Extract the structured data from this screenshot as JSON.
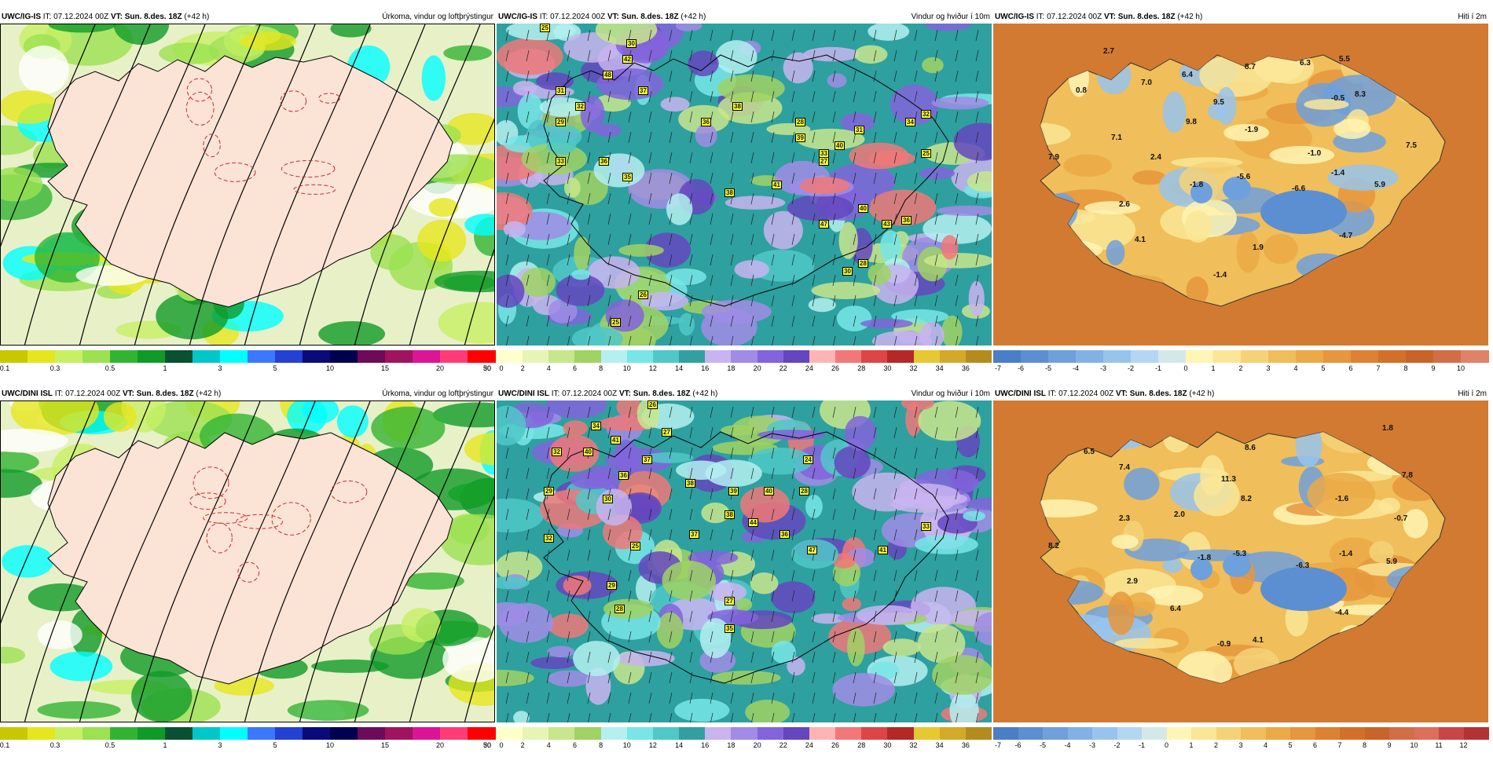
{
  "panels": [
    {
      "model": "UWC/IG-IS",
      "it": "IT: 07.12.2024 00Z",
      "vt_label": "VT:",
      "vt": "Sun. 8.des. 18Z",
      "lead": "(+42 h)",
      "title": "Úrkoma, vindur og loftþrýstingur"
    },
    {
      "model": "UWC/IG-IS",
      "it": "IT: 07.12.2024 00Z",
      "vt_label": "VT:",
      "vt": "Sun. 8.des. 18Z",
      "lead": "(+42 h)",
      "title": "Vindur og hviður í 10m"
    },
    {
      "model": "UWC/IG-IS",
      "it": "IT: 07.12.2024 00Z",
      "vt_label": "VT:",
      "vt": "Sun. 8.des. 18Z",
      "lead": "(+42 h)",
      "title": "Hiti í 2m"
    },
    {
      "model": "UWC/DINI ISL",
      "it": "IT: 07.12.2024 00Z",
      "vt_label": "VT:",
      "vt": "Sun. 8.des. 18Z",
      "lead": "(+42 h)",
      "title": "Úrkoma, vindur og loftþrýstingur"
    },
    {
      "model": "UWC/DINI ISL",
      "it": "IT: 07.12.2024 00Z",
      "vt_label": "VT:",
      "vt": "Sun. 8.des. 18Z",
      "lead": "(+42 h)",
      "title": "Vindur og hviður í 10m"
    },
    {
      "model": "UWC/DINI ISL",
      "it": "IT: 07.12.2024 00Z",
      "vt_label": "VT:",
      "vt": "Sun. 8.des. 18Z",
      "lead": "(+42 h)",
      "title": "Hiti í 2m"
    }
  ],
  "colorbars": {
    "precip": {
      "colors": [
        "#c8c800",
        "#e6e61e",
        "#c8f064",
        "#9be150",
        "#32b432",
        "#0f9b28",
        "#0a5032",
        "#00c8c8",
        "#00ffff",
        "#3c78ff",
        "#2341d2",
        "#0a0a78",
        "#000050",
        "#6e0a5a",
        "#a0145f",
        "#dc1496",
        "#ff3c78",
        "#ff0000"
      ],
      "labels": [
        "0.1",
        "0.3",
        "0.5",
        "1",
        "3",
        "5",
        "10",
        "15",
        "20",
        "30",
        "50"
      ]
    },
    "wind": {
      "colors": [
        "#ffffcc",
        "#e6f5b4",
        "#c8e68c",
        "#a0d264",
        "#b4f0f0",
        "#78e6e6",
        "#50c8c8",
        "#32a0a0",
        "#c8b4f0",
        "#a08ce6",
        "#8264dc",
        "#6446be",
        "#ffb4b4",
        "#f07878",
        "#dc4646",
        "#b42828",
        "#e6c832",
        "#d2aa28",
        "#b48c1e"
      ],
      "labels": [
        "0",
        "2",
        "4",
        "6",
        "8",
        "10",
        "12",
        "14",
        "16",
        "18",
        "20",
        "22",
        "24",
        "26",
        "28",
        "30",
        "32",
        "34",
        "36"
      ]
    },
    "temp_top": {
      "colors": [
        "#4a7fc8",
        "#5b8fd2",
        "#6ea0dc",
        "#82b2e4",
        "#98c4ec",
        "#b4d6f2",
        "#d4e8e8",
        "#fff5b4",
        "#fae696",
        "#f5d278",
        "#f0be5a",
        "#ebaa46",
        "#e6963c",
        "#dc8232",
        "#d2702a",
        "#c86428",
        "#d26e46",
        "#e08268"
      ],
      "labels": [
        "-7",
        "-6",
        "-5",
        "-4",
        "-3",
        "-2",
        "-1",
        "0",
        "1",
        "2",
        "3",
        "4",
        "5",
        "6",
        "7",
        "8",
        "9",
        "10"
      ]
    },
    "temp_bottom": {
      "colors": [
        "#4a7fc8",
        "#5b8fd2",
        "#6ea0dc",
        "#82b2e4",
        "#98c4ec",
        "#b4d6f2",
        "#d4e8e8",
        "#fff5b4",
        "#fae696",
        "#f5d278",
        "#f0be5a",
        "#ebaa46",
        "#e6963c",
        "#dc8232",
        "#d2702a",
        "#c86428",
        "#d26e46",
        "#dc6e5a",
        "#c84646",
        "#b43232"
      ],
      "labels": [
        "-7",
        "-6",
        "-5",
        "-4",
        "-3",
        "-2",
        "-1",
        "0",
        "1",
        "2",
        "3",
        "4",
        "5",
        "6",
        "7",
        "8",
        "9",
        "10",
        "11",
        "12"
      ]
    }
  },
  "wind_values_top": [
    "25",
    "30",
    "31",
    "32",
    "29",
    "33",
    "36",
    "35",
    "37",
    "42",
    "48",
    "38",
    "39",
    "40",
    "41",
    "27",
    "28",
    "36",
    "38",
    "33",
    "34",
    "32",
    "25",
    "40",
    "47",
    "43",
    "36",
    "30",
    "28",
    "26",
    "25",
    "31"
  ],
  "wind_values_bottom": [
    "26",
    "27",
    "34",
    "32",
    "40",
    "41",
    "37",
    "36",
    "29",
    "30",
    "38",
    "39",
    "40",
    "44",
    "28",
    "38",
    "47",
    "41",
    "33",
    "25",
    "37",
    "27",
    "29",
    "28",
    "35",
    "24",
    "36",
    "32"
  ],
  "temps_top": [
    "2.7",
    "0.8",
    "7.0",
    "6.4",
    "8.7",
    "6.3",
    "5.5",
    "-0.5",
    "8.3",
    "9.5",
    "9.8",
    "-1.9",
    "7.1",
    "-1.0",
    "7.5",
    "7.9",
    "2.4",
    "-1.8",
    "-5.6",
    "-6.6",
    "-1.4",
    "5.9",
    "2.6",
    "-4.7",
    "4.1",
    "1.9",
    "-1.4"
  ],
  "temps_bottom": [
    "1.8",
    "6.5",
    "7.4",
    "8.6",
    "7.8",
    "11.3",
    "8.2",
    "-1.6",
    "2.3",
    "2.0",
    "-0.7",
    "8.2",
    "-1.8",
    "-5.3",
    "-6.3",
    "-1.4",
    "5.9",
    "2.9",
    "-4.4",
    "6.4",
    "4.1",
    "-0.9"
  ]
}
